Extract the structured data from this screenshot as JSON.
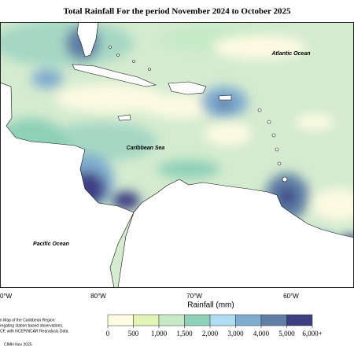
{
  "title": "Total Rainfall For the period November 2024 to October 2025",
  "map": {
    "labels": [
      "Atlantic Ocean",
      "Caribbean Sea",
      "Pacific Ocean"
    ],
    "longitudes": [
      "0°W",
      "80°W",
      "70°W",
      "60°W"
    ]
  },
  "legend": {
    "title": "Rainfall (mm)",
    "ticks": [
      0,
      500,
      {
        "value": 1000,
        "label": "1,000"
      },
      {
        "value": 1500,
        "label": "1,500"
      },
      {
        "value": 2000,
        "label": "2,000"
      },
      {
        "value": 3000,
        "label": "3,000"
      },
      {
        "value": 4000,
        "label": "4,000"
      },
      {
        "value": 5000,
        "label": "5,000"
      },
      {
        "value": 6000,
        "label": "6,000+"
      }
    ],
    "colors": [
      "#fdfbe2",
      "#e2f5b4",
      "#c6eac6",
      "#8fd0b8",
      "#b0dcf2",
      "#7fabcf",
      "#5f7fa6",
      "#3c3f84"
    ]
  },
  "footnote": {
    "lines": [
      "n Map of the Caribbean Region",
      "regating station based observations,",
      "CF, with NCEP/NCAR Reanalysis Data."
    ],
    "credit": "CIMH Nov 2025"
  }
}
